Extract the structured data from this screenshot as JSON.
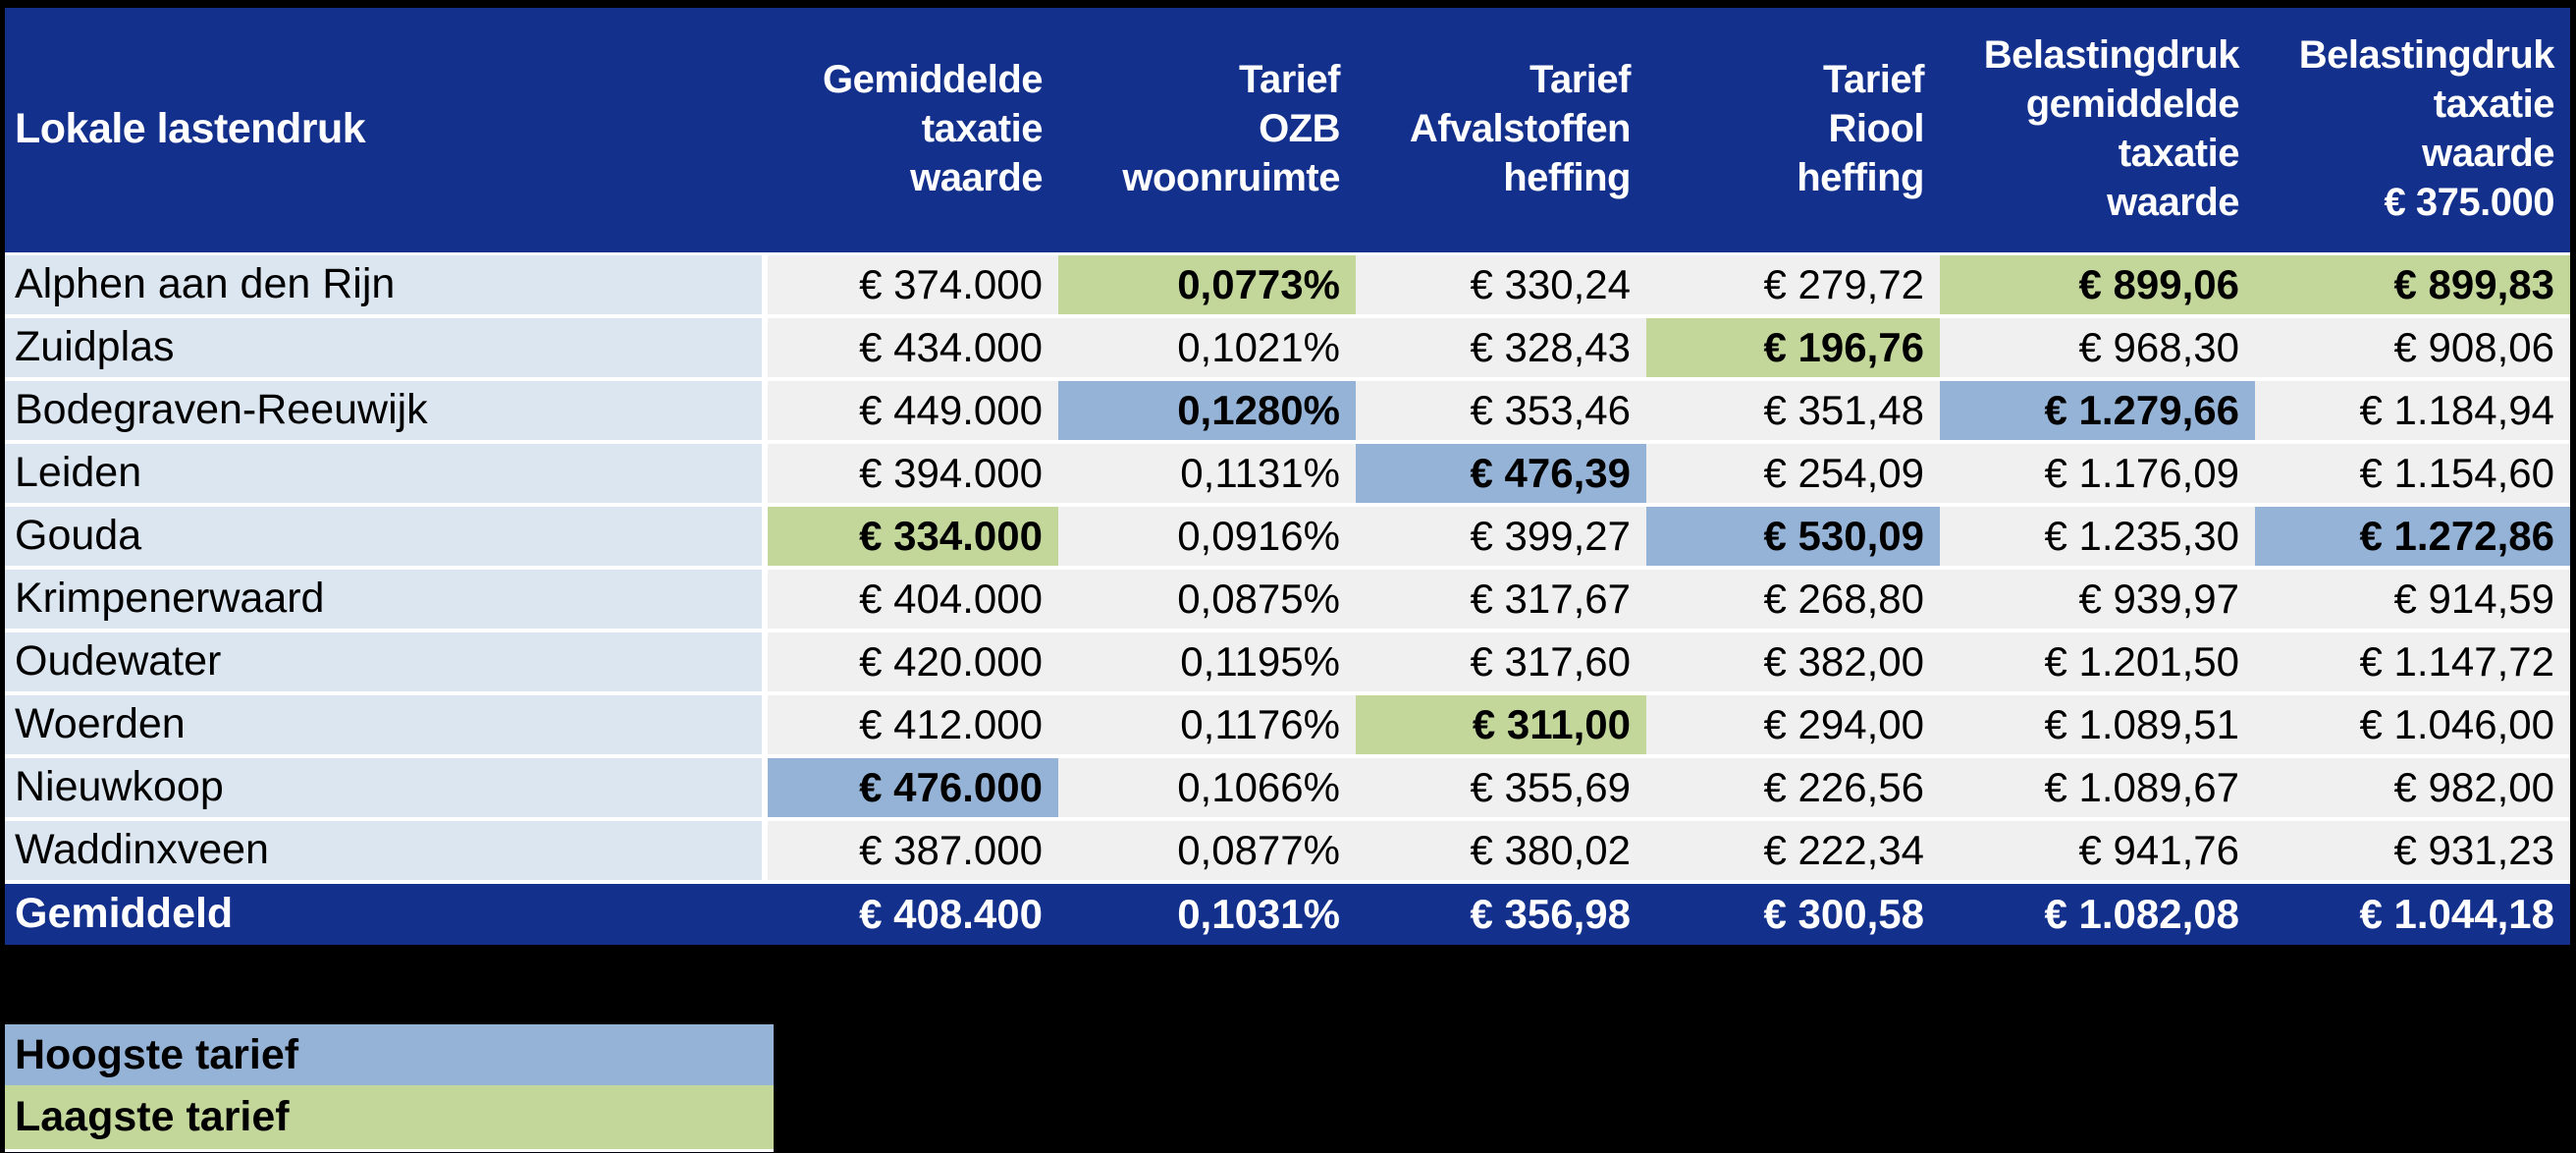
{
  "colors": {
    "header_bg": "#13308C",
    "label_bg": "#DCE6F1",
    "cell_bg": "#F0F0F0",
    "highest_bg": "#95B3D7",
    "lowest_bg": "#C4D79B",
    "gridline": "#FFFFFF",
    "page_bg": "#000000",
    "header_text": "#FFFFFF"
  },
  "table": {
    "columns": [
      {
        "label": "Lokale lastendruk"
      },
      {
        "label": "Gemiddelde\ntaxatie\nwaarde"
      },
      {
        "label": "Tarief\nOZB\nwoonruimte"
      },
      {
        "label": "Tarief\nAfvalstoffen\nheffing"
      },
      {
        "label": "Tarief\nRiool\nheffing"
      },
      {
        "label": "Belastingdruk\ngemiddelde\ntaxatie\nwaarde"
      },
      {
        "label": "Belastingdruk\ntaxatie\nwaarde\n€ 375.000"
      }
    ],
    "rows": [
      {
        "name": "Alphen aan den Rijn",
        "cells": [
          {
            "text": "€ 374.000"
          },
          {
            "text": "0,0773%",
            "highlight": "low"
          },
          {
            "text": "€ 330,24"
          },
          {
            "text": "€ 279,72"
          },
          {
            "text": "€ 899,06",
            "highlight": "low"
          },
          {
            "text": "€ 899,83",
            "highlight": "low"
          }
        ]
      },
      {
        "name": "Zuidplas",
        "cells": [
          {
            "text": "€ 434.000"
          },
          {
            "text": "0,1021%"
          },
          {
            "text": "€ 328,43"
          },
          {
            "text": "€ 196,76",
            "highlight": "low"
          },
          {
            "text": "€ 968,30"
          },
          {
            "text": "€ 908,06"
          }
        ]
      },
      {
        "name": "Bodegraven-Reeuwijk",
        "cells": [
          {
            "text": "€ 449.000"
          },
          {
            "text": "0,1280%",
            "highlight": "high"
          },
          {
            "text": "€ 353,46"
          },
          {
            "text": "€ 351,48"
          },
          {
            "text": "€ 1.279,66",
            "highlight": "high"
          },
          {
            "text": "€ 1.184,94"
          }
        ]
      },
      {
        "name": "Leiden",
        "cells": [
          {
            "text": "€ 394.000"
          },
          {
            "text": "0,1131%"
          },
          {
            "text": "€ 476,39",
            "highlight": "high"
          },
          {
            "text": "€ 254,09"
          },
          {
            "text": "€ 1.176,09"
          },
          {
            "text": "€ 1.154,60"
          }
        ]
      },
      {
        "name": "Gouda",
        "cells": [
          {
            "text": "€ 334.000",
            "highlight": "low"
          },
          {
            "text": "0,0916%"
          },
          {
            "text": "€ 399,27"
          },
          {
            "text": "€ 530,09",
            "highlight": "high"
          },
          {
            "text": "€ 1.235,30"
          },
          {
            "text": "€ 1.272,86",
            "highlight": "high"
          }
        ]
      },
      {
        "name": "Krimpenerwaard",
        "cells": [
          {
            "text": "€ 404.000"
          },
          {
            "text": "0,0875%"
          },
          {
            "text": "€ 317,67"
          },
          {
            "text": "€ 268,80"
          },
          {
            "text": "€ 939,97"
          },
          {
            "text": "€ 914,59"
          }
        ]
      },
      {
        "name": "Oudewater",
        "cells": [
          {
            "text": "€ 420.000"
          },
          {
            "text": "0,1195%"
          },
          {
            "text": "€ 317,60"
          },
          {
            "text": "€ 382,00"
          },
          {
            "text": "€ 1.201,50"
          },
          {
            "text": "€ 1.147,72"
          }
        ]
      },
      {
        "name": "Woerden",
        "cells": [
          {
            "text": "€ 412.000"
          },
          {
            "text": "0,1176%"
          },
          {
            "text": "€ 311,00",
            "highlight": "low"
          },
          {
            "text": "€ 294,00"
          },
          {
            "text": "€ 1.089,51"
          },
          {
            "text": "€ 1.046,00"
          }
        ]
      },
      {
        "name": "Nieuwkoop",
        "cells": [
          {
            "text": "€ 476.000",
            "highlight": "high"
          },
          {
            "text": "0,1066%"
          },
          {
            "text": "€ 355,69"
          },
          {
            "text": "€ 226,56"
          },
          {
            "text": "€ 1.089,67"
          },
          {
            "text": "€ 982,00"
          }
        ]
      },
      {
        "name": "Waddinxveen",
        "cells": [
          {
            "text": "€ 387.000"
          },
          {
            "text": "0,0877%"
          },
          {
            "text": "€ 380,02"
          },
          {
            "text": "€ 222,34"
          },
          {
            "text": "€ 941,76"
          },
          {
            "text": "€ 931,23"
          }
        ]
      }
    ],
    "total_row": {
      "name": "Gemiddeld",
      "cells": [
        {
          "text": "€ 408.400"
        },
        {
          "text": "0,1031%"
        },
        {
          "text": "€ 356,98"
        },
        {
          "text": "€ 300,58"
        },
        {
          "text": "€ 1.082,08"
        },
        {
          "text": "€ 1.044,18"
        }
      ]
    }
  },
  "legend": [
    {
      "label": "Hoogste tarief",
      "color": "#95B3D7"
    },
    {
      "label": "Laagste tarief",
      "color": "#C4D79B"
    }
  ],
  "chart_data": {
    "type": "table",
    "title": "Lokale lastendruk",
    "categories": [
      "Alphen aan den Rijn",
      "Zuidplas",
      "Bodegraven-Reeuwijk",
      "Leiden",
      "Gouda",
      "Krimpenerwaard",
      "Oudewater",
      "Woerden",
      "Nieuwkoop",
      "Waddinxveen"
    ],
    "series": [
      {
        "name": "Gemiddelde taxatie waarde (EUR)",
        "values": [
          374000,
          434000,
          449000,
          394000,
          334000,
          404000,
          420000,
          412000,
          476000,
          387000
        ],
        "average": 408400
      },
      {
        "name": "Tarief OZB woonruimte (%)",
        "values": [
          0.0773,
          0.1021,
          0.128,
          0.1131,
          0.0916,
          0.0875,
          0.1195,
          0.1176,
          0.1066,
          0.0877
        ],
        "average": 0.1031
      },
      {
        "name": "Tarief Afvalstoffenheffing (EUR)",
        "values": [
          330.24,
          328.43,
          353.46,
          476.39,
          399.27,
          317.67,
          317.6,
          311.0,
          355.69,
          380.02
        ],
        "average": 356.98
      },
      {
        "name": "Tarief Rioolheffing (EUR)",
        "values": [
          279.72,
          196.76,
          351.48,
          254.09,
          530.09,
          268.8,
          382.0,
          294.0,
          226.56,
          222.34
        ],
        "average": 300.58
      },
      {
        "name": "Belastingdruk gemiddelde taxatie waarde (EUR)",
        "values": [
          899.06,
          968.3,
          1279.66,
          1176.09,
          1235.3,
          939.97,
          1201.5,
          1089.51,
          1089.67,
          941.76
        ],
        "average": 1082.08
      },
      {
        "name": "Belastingdruk taxatie waarde EUR 375.000 (EUR)",
        "values": [
          899.83,
          908.06,
          1184.94,
          1154.6,
          1272.86,
          914.59,
          1147.72,
          1046.0,
          982.0,
          931.23
        ],
        "average": 1044.18
      }
    ],
    "annotations": [
      "Hoogste tarief = blue highlight",
      "Laagste tarief = green highlight"
    ],
    "legend_position": "bottom-left"
  }
}
